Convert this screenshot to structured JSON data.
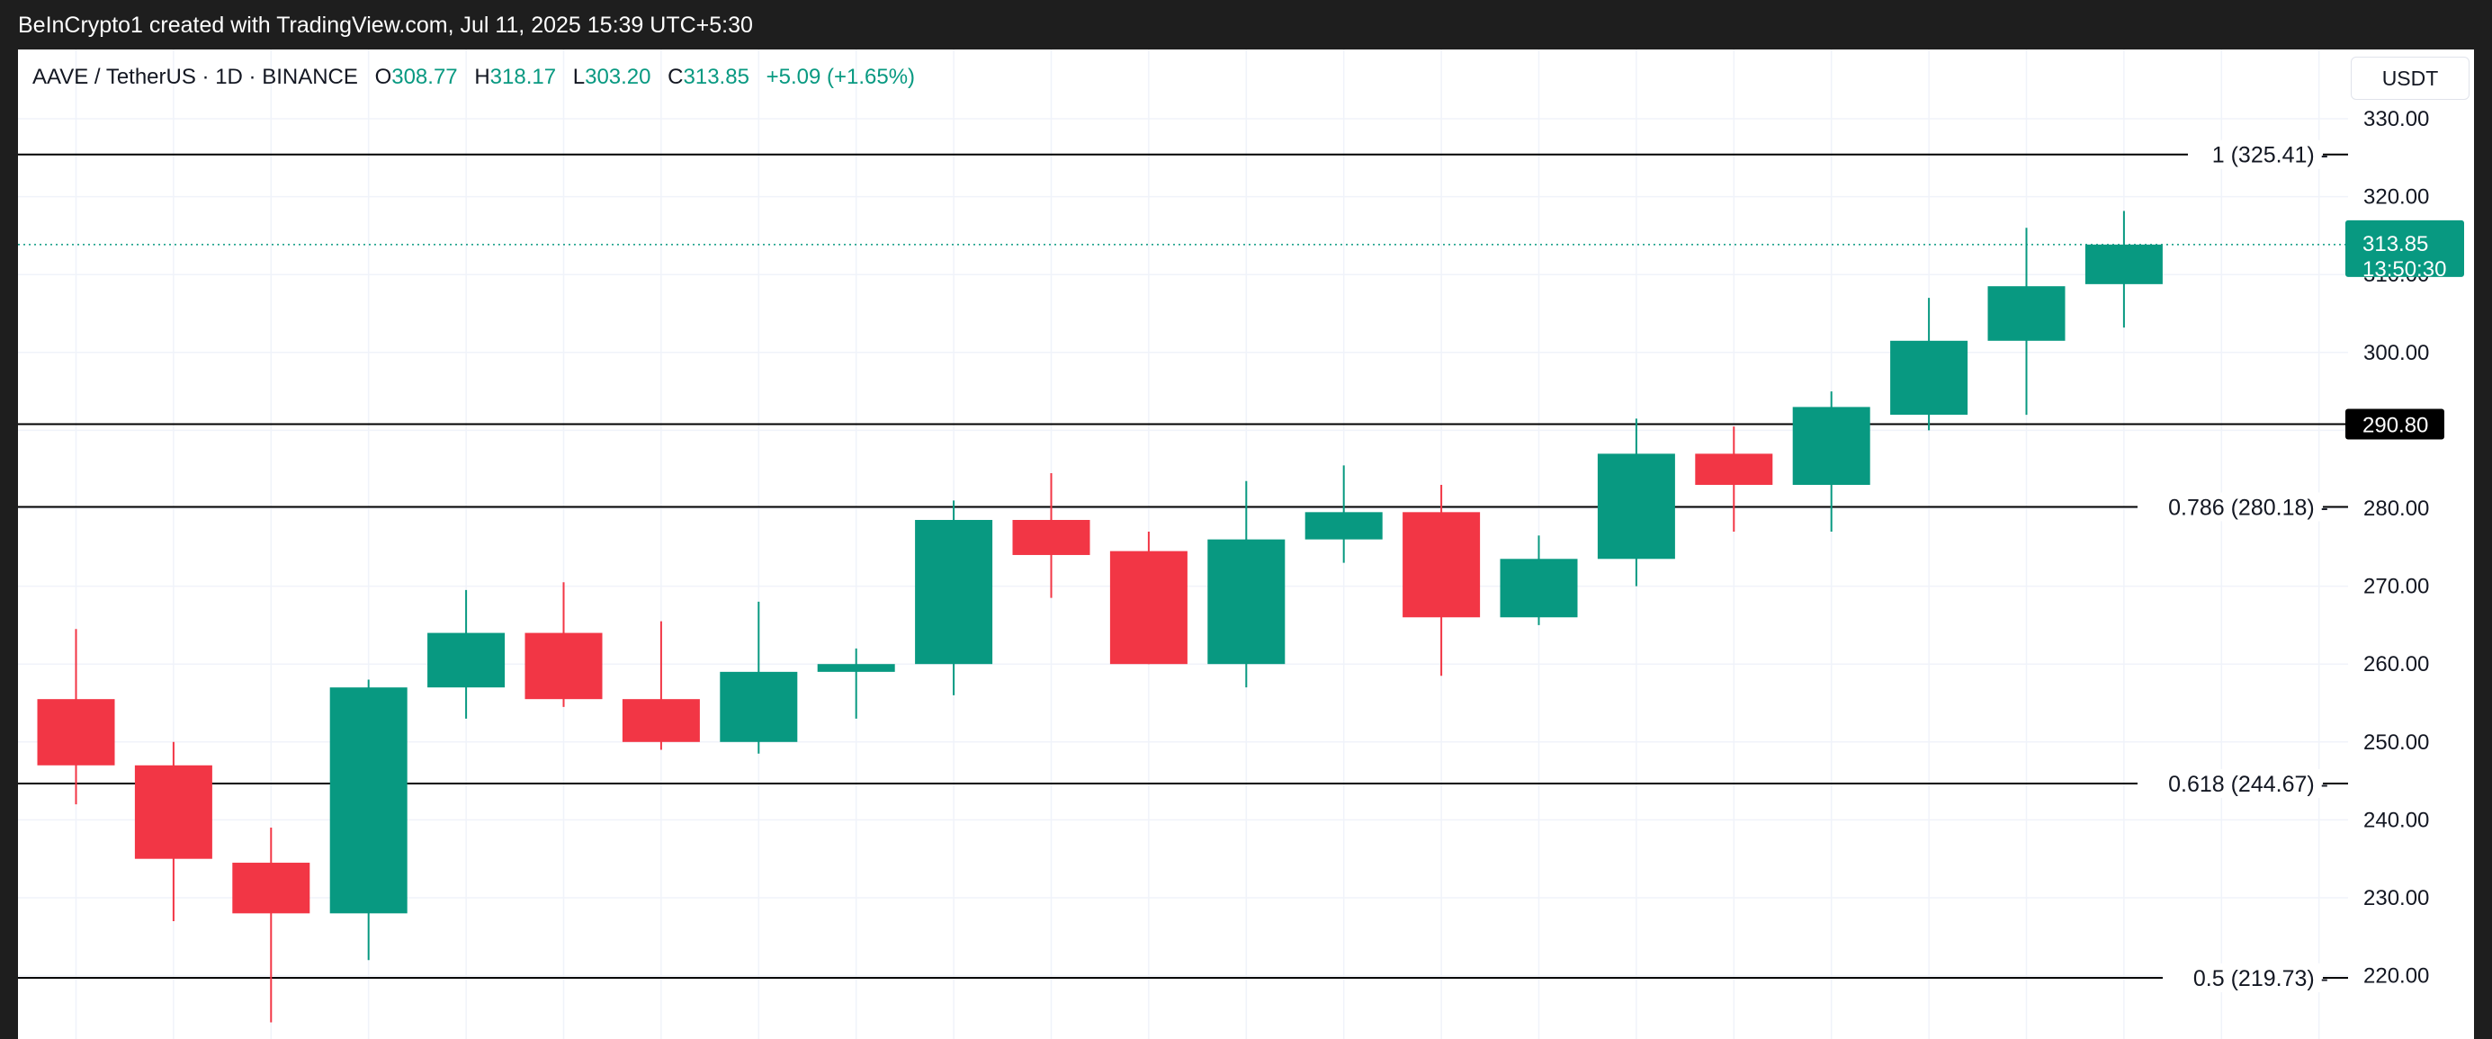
{
  "header": {
    "attribution": "BeInCrypto1 created with TradingView.com, Jul 11, 2025 15:39 UTC+5:30"
  },
  "legend": {
    "symbol": "AAVE / TetherUS · 1D · BINANCE",
    "o_label": "O",
    "o_value": "308.77",
    "h_label": "H",
    "h_value": "318.17",
    "l_label": "L",
    "l_value": "303.20",
    "c_label": "C",
    "c_value": "313.85",
    "change": "+5.09 (+1.65%)"
  },
  "price_axis": {
    "unit": "USDT",
    "current_price": "313.85",
    "countdown": "13:50:30",
    "marked_level": "290.80"
  },
  "colors": {
    "up": "#089981",
    "down": "#f23645",
    "fib_line": "#000000",
    "grid": "#f0f3fa"
  },
  "chart_data": {
    "type": "candlestick",
    "title": "AAVE / TetherUS · 1D · BINANCE",
    "ylim": [
      208,
      335
    ],
    "y_ticks": [
      "220.00",
      "230.00",
      "240.00",
      "250.00",
      "260.00",
      "270.00",
      "280.00",
      "290.00",
      "300.00",
      "310.00",
      "320.00",
      "330.00"
    ],
    "grid": true,
    "current_price": 313.85,
    "candles": [
      {
        "open": 255.5,
        "high": 264.5,
        "low": 242.0,
        "close": 247.0
      },
      {
        "open": 247.0,
        "high": 250.0,
        "low": 227.0,
        "close": 235.0
      },
      {
        "open": 234.5,
        "high": 239.0,
        "low": 214.0,
        "close": 228.0
      },
      {
        "open": 228.0,
        "high": 258.0,
        "low": 222.0,
        "close": 257.0
      },
      {
        "open": 257.0,
        "high": 269.5,
        "low": 253.0,
        "close": 264.0
      },
      {
        "open": 264.0,
        "high": 270.5,
        "low": 254.5,
        "close": 255.5
      },
      {
        "open": 255.5,
        "high": 265.5,
        "low": 249.0,
        "close": 250.0
      },
      {
        "open": 250.0,
        "high": 268.0,
        "low": 248.5,
        "close": 259.0
      },
      {
        "open": 259.0,
        "high": 262.0,
        "low": 253.0,
        "close": 260.0
      },
      {
        "open": 260.0,
        "high": 281.0,
        "low": 256.0,
        "close": 278.5
      },
      {
        "open": 278.5,
        "high": 284.5,
        "low": 268.5,
        "close": 274.0
      },
      {
        "open": 274.5,
        "high": 277.0,
        "low": 260.0,
        "close": 260.0
      },
      {
        "open": 260.0,
        "high": 283.5,
        "low": 257.0,
        "close": 276.0
      },
      {
        "open": 276.0,
        "high": 285.5,
        "low": 273.0,
        "close": 279.5
      },
      {
        "open": 279.5,
        "high": 283.0,
        "low": 258.5,
        "close": 266.0
      },
      {
        "open": 266.0,
        "high": 276.5,
        "low": 265.0,
        "close": 273.5
      },
      {
        "open": 273.5,
        "high": 291.5,
        "low": 270.0,
        "close": 287.0
      },
      {
        "open": 287.0,
        "high": 290.5,
        "low": 277.0,
        "close": 283.0
      },
      {
        "open": 283.0,
        "high": 295.0,
        "low": 277.0,
        "close": 293.0
      },
      {
        "open": 292.0,
        "high": 307.0,
        "low": 290.0,
        "close": 301.5
      },
      {
        "open": 301.5,
        "high": 316.0,
        "low": 292.0,
        "close": 308.5
      },
      {
        "open": 308.77,
        "high": 318.17,
        "low": 303.2,
        "close": 313.85
      }
    ],
    "fib_levels": [
      {
        "label": "1 (325.41)",
        "value": 325.41
      },
      {
        "label": "0.786 (280.18)",
        "value": 280.18
      },
      {
        "label": "0.618 (244.67)",
        "value": 244.67
      },
      {
        "label": "0.5 (219.73)",
        "value": 219.73
      }
    ],
    "horizontal_line": {
      "value": 290.8,
      "label": "290.80"
    }
  }
}
